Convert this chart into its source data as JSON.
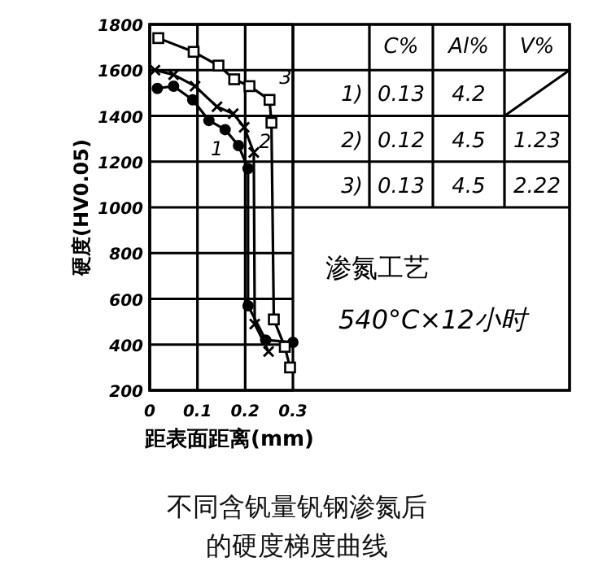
{
  "chart_data": {
    "type": "line",
    "xlabel": "距表面距离(mm)",
    "ylabel": "硬度(HV0.05)",
    "xlim": [
      0,
      0.3
    ],
    "xticks": [
      0,
      0.1,
      0.2,
      0.3
    ],
    "ylim": [
      200,
      1800
    ],
    "yticks": [
      200,
      400,
      600,
      800,
      1000,
      1200,
      1400,
      1600,
      1800
    ],
    "grid": true,
    "series": [
      {
        "name": "1",
        "color": "#000000",
        "marker": "circle",
        "x": [
          0.016,
          0.05,
          0.09,
          0.124,
          0.158,
          0.186,
          0.206,
          0.206,
          0.243,
          0.3
        ],
        "values": [
          1520,
          1530,
          1470,
          1380,
          1340,
          1270,
          1170,
          570,
          420,
          410
        ]
      },
      {
        "name": "2",
        "color": "#000000",
        "marker": "cross",
        "x": [
          0.011,
          0.05,
          0.095,
          0.141,
          0.175,
          0.198,
          0.218,
          0.22,
          0.249
        ],
        "values": [
          1600,
          1580,
          1530,
          1440,
          1410,
          1350,
          1240,
          490,
          370
        ]
      },
      {
        "name": "3",
        "color": "#000000",
        "marker": "square",
        "x": [
          0.018,
          0.092,
          0.144,
          0.177,
          0.209,
          0.251,
          0.255,
          0.26,
          0.283,
          0.294
        ],
        "values": [
          1740,
          1680,
          1620,
          1560,
          1530,
          1470,
          1370,
          510,
          390,
          300
        ]
      }
    ],
    "annotations": [
      "C%",
      "Al%",
      "V%",
      "1)",
      "0.13",
      "4.2",
      "2)",
      "0.12",
      "4.5",
      "1.23",
      "3)",
      "0.13",
      "4.5",
      "2.22",
      "渗氮工艺",
      "540°C×12小时",
      "不同含钒量钒钢渗氮后的硬度梯度曲线"
    ]
  }
}
